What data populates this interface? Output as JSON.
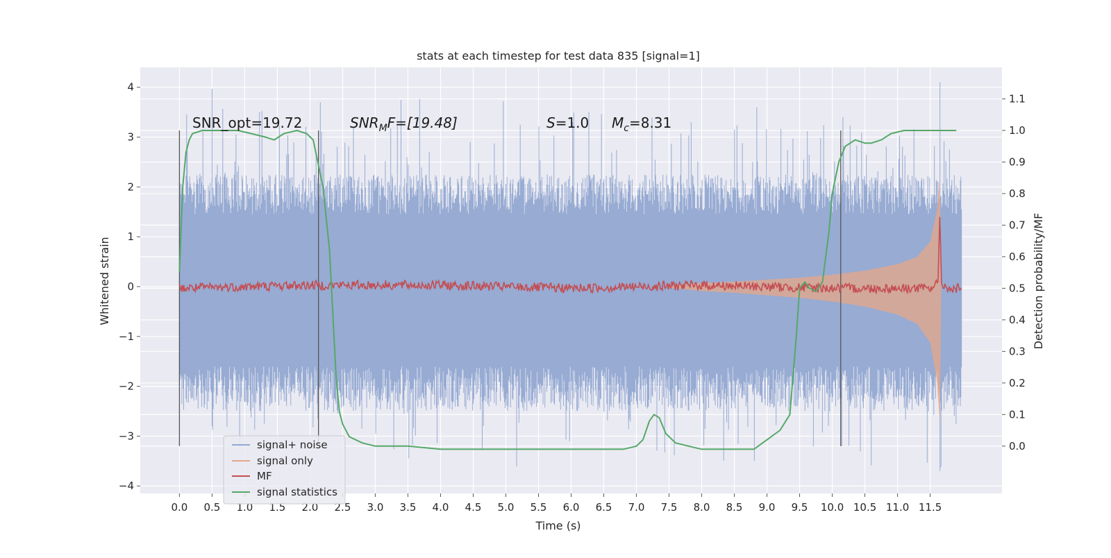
{
  "chart_data": {
    "type": "line",
    "title": "stats at each timestep for test data 835 [signal=1]",
    "xlabel": "Time (s)",
    "ylabel": "Whitened strain",
    "y2label": "Detection probability/MF",
    "xlim": [
      -0.6,
      12.6
    ],
    "ylim": [
      -4.15,
      4.4
    ],
    "y2lim": [
      -0.15,
      1.2
    ],
    "x_ticks": [
      0.0,
      0.5,
      1.0,
      1.5,
      2.0,
      2.5,
      3.0,
      3.5,
      4.0,
      4.5,
      5.0,
      5.5,
      6.0,
      6.5,
      7.0,
      7.5,
      8.0,
      8.5,
      9.0,
      9.5,
      10.0,
      10.5,
      11.0,
      11.5
    ],
    "x_tick_labels": [
      "0.0",
      "0.5",
      "1.0",
      "1.5",
      "2.0",
      "2.5",
      "3.0",
      "3.5",
      "4.0",
      "4.5",
      "5.0",
      "5.5",
      "6.0",
      "6.5",
      "7.0",
      "7.5",
      "8.0",
      "8.5",
      "9.0",
      "9.5",
      "10.0",
      "10.5",
      "11.0",
      "11.5"
    ],
    "y_ticks": [
      -4,
      -3,
      -2,
      -1,
      0,
      1,
      2,
      3,
      4
    ],
    "y_tick_labels": [
      "−4",
      "−3",
      "−2",
      "−1",
      "0",
      "1",
      "2",
      "3",
      "4"
    ],
    "y2_ticks": [
      0.0,
      0.1,
      0.2,
      0.3,
      0.4,
      0.5,
      0.6,
      0.7,
      0.8,
      0.9,
      1.0,
      1.1
    ],
    "y2_tick_labels": [
      "0.0",
      "0.1",
      "0.2",
      "0.3",
      "0.4",
      "0.5",
      "0.6",
      "0.7",
      "0.8",
      "0.9",
      "1.0",
      "1.1"
    ],
    "grid": true,
    "legend_position": "bottom-left",
    "legend": [
      "signal+ noise",
      "signal only",
      "MF",
      "signal statistics"
    ],
    "vertical_lines_x": [
      0.0,
      2.13,
      10.13
    ],
    "annotations": {
      "snr_opt": "SNR_opt=19.72",
      "snr_mf_main": "SNR",
      "snr_mf_sub": "M",
      "snr_mf_rest": "F=[19.48]",
      "s_main": "S",
      "s_rest": "=1.0",
      "mc_main": "M",
      "mc_sub": "c",
      "mc_rest": "=8.31"
    },
    "series": [
      {
        "name": "signal+ noise",
        "axis": "left",
        "color": "#92a8d1",
        "description_envelope": {
          "x_range": [
            0.0,
            11.98
          ],
          "typical_band": [
            -1.6,
            1.45
          ],
          "peak_max": 4.1,
          "peak_min": -3.7
        }
      },
      {
        "name": "signal only",
        "axis": "left",
        "color": "#e5a788",
        "x": [
          7.5,
          8.0,
          8.5,
          9.0,
          9.5,
          10.0,
          10.5,
          11.0,
          11.3,
          11.5,
          11.6,
          11.65,
          11.67
        ],
        "amplitude": [
          0.02,
          0.07,
          0.1,
          0.14,
          0.18,
          0.24,
          0.32,
          0.45,
          0.6,
          0.9,
          1.5,
          2.2,
          0.0
        ]
      },
      {
        "name": "MF",
        "axis": "right",
        "color": "#c44e52",
        "x": [
          0.0,
          2.0,
          4.0,
          6.0,
          8.0,
          10.0,
          11.5,
          11.62,
          11.65,
          11.67,
          11.7,
          11.98
        ],
        "values": [
          0.5,
          0.51,
          0.51,
          0.5,
          0.51,
          0.5,
          0.5,
          0.52,
          0.75,
          0.52,
          0.5,
          0.5
        ]
      },
      {
        "name": "signal statistics",
        "axis": "right",
        "color": "#55a868",
        "x": [
          0.0,
          0.05,
          0.1,
          0.15,
          0.2,
          0.35,
          0.5,
          0.7,
          0.9,
          1.1,
          1.3,
          1.45,
          1.6,
          1.8,
          1.95,
          2.05,
          2.1,
          2.2,
          2.3,
          2.35,
          2.4,
          2.45,
          2.5,
          2.6,
          2.8,
          3.0,
          3.5,
          4.0,
          4.5,
          5.0,
          5.5,
          6.0,
          6.5,
          6.8,
          7.0,
          7.1,
          7.2,
          7.27,
          7.35,
          7.45,
          7.6,
          7.8,
          8.0,
          8.5,
          8.8,
          9.0,
          9.2,
          9.35,
          9.45,
          9.5,
          9.58,
          9.65,
          9.75,
          9.85,
          9.95,
          10.0,
          10.1,
          10.2,
          10.35,
          10.5,
          10.6,
          10.75,
          10.9,
          11.1,
          11.5,
          11.9
        ],
        "values": [
          0.55,
          0.82,
          0.93,
          0.97,
          0.99,
          1.0,
          1.0,
          1.0,
          1.0,
          0.99,
          0.98,
          0.97,
          0.99,
          1.0,
          0.99,
          0.97,
          0.92,
          0.82,
          0.62,
          0.42,
          0.22,
          0.11,
          0.07,
          0.03,
          0.01,
          0.0,
          0.0,
          -0.01,
          -0.01,
          -0.01,
          -0.01,
          -0.01,
          -0.01,
          -0.01,
          0.0,
          0.02,
          0.08,
          0.1,
          0.09,
          0.04,
          0.01,
          0.0,
          -0.01,
          -0.01,
          -0.01,
          0.02,
          0.05,
          0.1,
          0.35,
          0.5,
          0.52,
          0.5,
          0.49,
          0.52,
          0.68,
          0.8,
          0.9,
          0.95,
          0.97,
          0.96,
          0.96,
          0.97,
          0.99,
          1.0,
          1.0,
          1.0
        ]
      }
    ]
  }
}
